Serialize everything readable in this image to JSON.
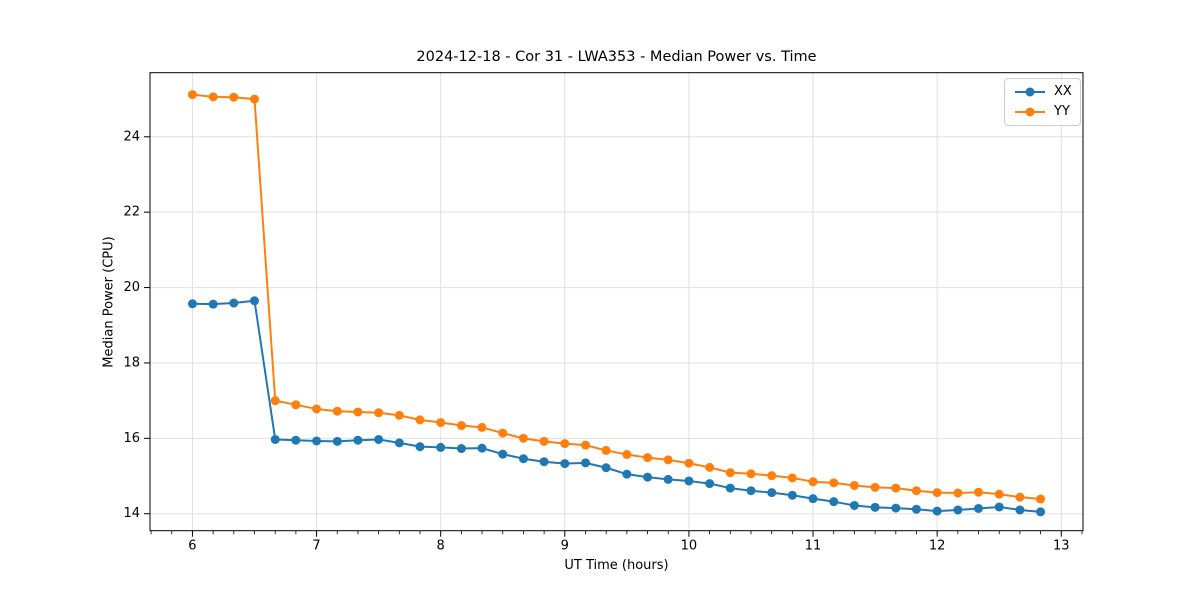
{
  "chart_data": {
    "type": "line",
    "title": "2024-12-18 - Cor 31 - LWA353 - Median Power vs. Time",
    "xlabel": "UT Time (hours)",
    "ylabel": "Median Power (CPU)",
    "xlim": [
      5.658,
      13.175
    ],
    "ylim": [
      13.55,
      25.7
    ],
    "xticks": [
      6,
      7,
      8,
      9,
      10,
      11,
      12,
      13
    ],
    "yticks": [
      14,
      16,
      18,
      20,
      22,
      24
    ],
    "x_minor_step": 0.166667,
    "grid": true,
    "legend_position": "upper right",
    "x": [
      6.0,
      6.167,
      6.333,
      6.5,
      6.667,
      6.833,
      7.0,
      7.167,
      7.333,
      7.5,
      7.667,
      7.833,
      8.0,
      8.167,
      8.333,
      8.5,
      8.667,
      8.833,
      9.0,
      9.167,
      9.333,
      9.5,
      9.667,
      9.833,
      10.0,
      10.167,
      10.333,
      10.5,
      10.667,
      10.833,
      11.0,
      11.167,
      11.333,
      11.5,
      11.667,
      11.833,
      12.0,
      12.167,
      12.333,
      12.5,
      12.667,
      12.833
    ],
    "series": [
      {
        "name": "XX",
        "color": "#1f77b4",
        "values": [
          19.57,
          19.56,
          19.59,
          19.65,
          15.97,
          15.95,
          15.93,
          15.92,
          15.95,
          15.97,
          15.88,
          15.78,
          15.76,
          15.73,
          15.74,
          15.58,
          15.46,
          15.38,
          15.33,
          15.35,
          15.22,
          15.05,
          14.97,
          14.91,
          14.87,
          14.8,
          14.68,
          14.61,
          14.56,
          14.49,
          14.4,
          14.32,
          14.22,
          14.17,
          14.15,
          14.12,
          14.07,
          14.1,
          14.14,
          14.18,
          14.1,
          14.05
        ]
      },
      {
        "name": "YY",
        "color": "#ff7f0e",
        "values": [
          25.12,
          25.06,
          25.05,
          25.0,
          17.0,
          16.89,
          16.78,
          16.72,
          16.7,
          16.68,
          16.61,
          16.49,
          16.42,
          16.34,
          16.29,
          16.14,
          16.0,
          15.92,
          15.86,
          15.82,
          15.68,
          15.57,
          15.49,
          15.43,
          15.34,
          15.23,
          15.09,
          15.06,
          15.01,
          14.95,
          14.85,
          14.82,
          14.75,
          14.7,
          14.68,
          14.61,
          14.56,
          14.55,
          14.57,
          14.52,
          14.44,
          14.39
        ]
      }
    ],
    "style": {
      "grid_color": "#e0e0e0",
      "spine_color": "#000000",
      "background": "#ffffff",
      "legend_border": "#cccccc",
      "marker_radius": 4.5,
      "line_width": 2
    }
  }
}
